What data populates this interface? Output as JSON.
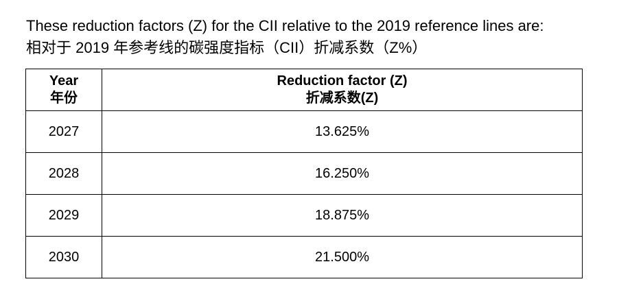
{
  "intro": [
    "These reduction factors (Z) for the CII relative to the 2019 reference lines are:",
    "相对于 2019 年参考线的碳强度指标（CII）折减系数（Z%）"
  ],
  "table": {
    "header": [
      [
        "Year",
        "年份"
      ],
      [
        "Reduction factor (Z)",
        "折减系数(Z)"
      ]
    ],
    "rows": [
      [
        "2027",
        "13.625%"
      ],
      [
        "2028",
        "16.250%"
      ],
      [
        "2029",
        "18.875%"
      ],
      [
        "2030",
        "21.500%"
      ]
    ]
  }
}
